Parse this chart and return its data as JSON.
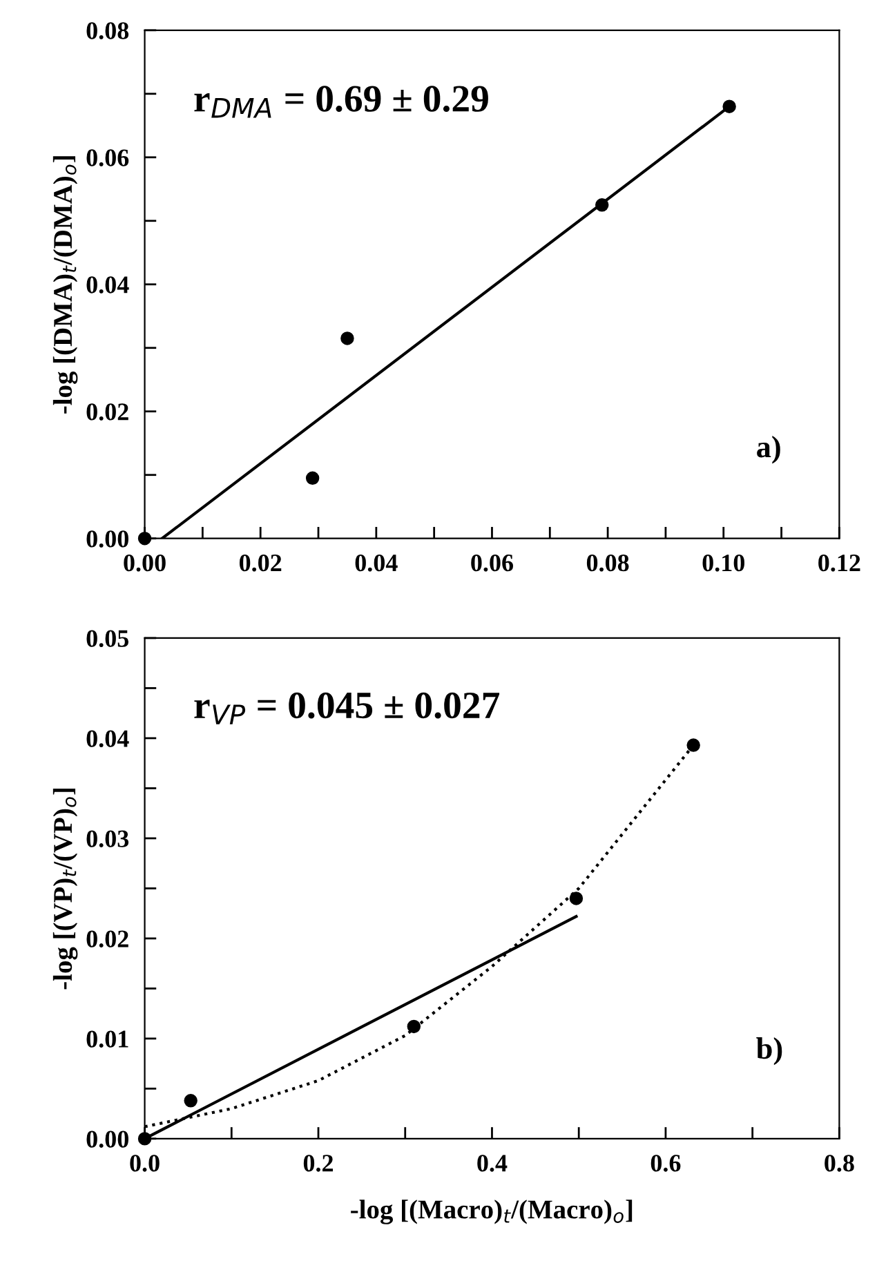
{
  "chart_data": [
    {
      "type": "scatter",
      "ylabel": "-log [(DMA)$_{t}$/(DMA)$_{o}$]",
      "annotations": [
        "r$_{DMA}$ = 0.69 ± 0.29",
        "a)"
      ],
      "xlim": [
        0,
        0.12
      ],
      "xticks": [
        {
          "value": 0,
          "label": "0.00"
        },
        {
          "value": 0.01,
          "label": null
        },
        {
          "value": 0.02,
          "label": "0.02"
        },
        {
          "value": 0.03,
          "label": null
        },
        {
          "value": 0.04,
          "label": "0.04"
        },
        {
          "value": 0.05,
          "label": null
        },
        {
          "value": 0.06,
          "label": "0.06"
        },
        {
          "value": 0.07,
          "label": null
        },
        {
          "value": 0.08,
          "label": "0.08"
        },
        {
          "value": 0.09,
          "label": null
        },
        {
          "value": 0.1,
          "label": "0.10"
        },
        {
          "value": 0.11,
          "label": null
        },
        {
          "value": 0.12,
          "label": "0.12"
        }
      ],
      "ylim": [
        0,
        0.08
      ],
      "yticks": [
        {
          "value": 0,
          "label": "0.00"
        },
        {
          "value": 0.01,
          "label": null
        },
        {
          "value": 0.02,
          "label": "0.02"
        },
        {
          "value": 0.03,
          "label": null
        },
        {
          "value": 0.04,
          "label": "0.04"
        },
        {
          "value": 0.05,
          "label": null
        },
        {
          "value": 0.06,
          "label": "0.06"
        },
        {
          "value": 0.07,
          "label": null
        },
        {
          "value": 0.08,
          "label": "0.08"
        }
      ],
      "grid": false,
      "legend": false,
      "series": [
        {
          "color": "#000000",
          "marker": "circle",
          "x": [
            0,
            0.029,
            0.035,
            0.079,
            0.101
          ],
          "values": [
            0,
            0.0095,
            0.0315,
            0.0525,
            0.068
          ]
        },
        {
          "type": "line",
          "color": "#000000",
          "marker": "none",
          "line_style": "solid",
          "x": [
            0.003,
            0.101
          ],
          "values": [
            0,
            0.068
          ]
        }
      ]
    },
    {
      "type": "scatter",
      "xlabel": "-log [(Macro)$_{t}$/(Macro)$_{o}$]",
      "ylabel": "-log [(VP)$_{t}$/(VP)$_{o}$]",
      "annotations": [
        "r$_{VP}$ = 0.045 ± 0.027",
        "b)"
      ],
      "xlim": [
        0,
        0.8
      ],
      "xticks": [
        {
          "value": 0,
          "label": "0.0"
        },
        {
          "value": 0.1,
          "label": null
        },
        {
          "value": 0.2,
          "label": "0.2"
        },
        {
          "value": 0.3,
          "label": null
        },
        {
          "value": 0.4,
          "label": "0.4"
        },
        {
          "value": 0.5,
          "label": null
        },
        {
          "value": 0.6,
          "label": "0.6"
        },
        {
          "value": 0.7,
          "label": null
        },
        {
          "value": 0.8,
          "label": "0.8"
        }
      ],
      "ylim": [
        0,
        0.05
      ],
      "yticks": [
        {
          "value": 0,
          "label": "0.00"
        },
        {
          "value": 0.005,
          "label": null
        },
        {
          "value": 0.01,
          "label": "0.01"
        },
        {
          "value": 0.015,
          "label": null
        },
        {
          "value": 0.02,
          "label": "0.02"
        },
        {
          "value": 0.025,
          "label": null
        },
        {
          "value": 0.03,
          "label": "0.03"
        },
        {
          "value": 0.035,
          "label": null
        },
        {
          "value": 0.04,
          "label": "0.04"
        },
        {
          "value": 0.045,
          "label": null
        },
        {
          "value": 0.05,
          "label": "0.05"
        }
      ],
      "grid": false,
      "legend": false,
      "series": [
        {
          "color": "#000000",
          "marker": "circle",
          "x": [
            0,
            0.053,
            0.31,
            0.497,
            0.632
          ],
          "values": [
            0,
            0.0038,
            0.0112,
            0.024,
            0.0393
          ]
        },
        {
          "type": "line",
          "color": "#000000",
          "marker": "none",
          "line_style": "solid",
          "x": [
            0,
            0.497
          ],
          "values": [
            0,
            0.0222
          ]
        },
        {
          "type": "line",
          "color": "#000000",
          "marker": "none",
          "line_style": "dotted",
          "x": [
            0,
            0.1,
            0.2,
            0.3,
            0.4,
            0.5,
            0.632
          ],
          "values": [
            0.0012,
            0.003,
            0.0058,
            0.0103,
            0.0172,
            0.025,
            0.0393
          ]
        }
      ]
    }
  ]
}
